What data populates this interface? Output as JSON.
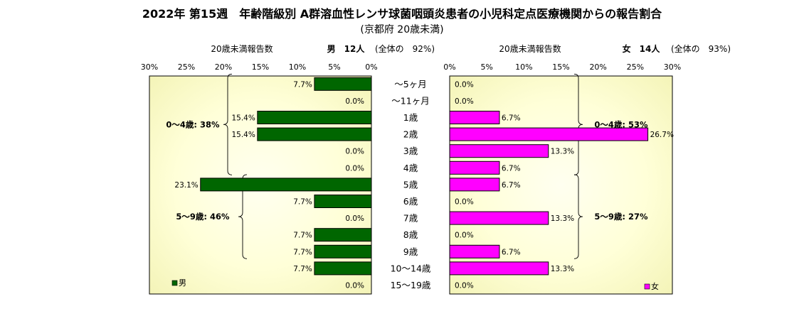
{
  "title": "2022年 第15週　年齢階級別 A群溶血性レンサ球菌咽頭炎患者の小児科定点医療機関からの報告割合",
  "subtitle": "(京都府 20歳未満)",
  "chart_data": {
    "type": "bar",
    "categories": [
      "～5ヶ月",
      "～11ヶ月",
      "1歳",
      "2歳",
      "3歳",
      "4歳",
      "5歳",
      "6歳",
      "7歳",
      "8歳",
      "9歳",
      "10～14歳",
      "15～19歳"
    ],
    "axis_ticks": [
      "30%",
      "25%",
      "20%",
      "15%",
      "10%",
      "5%",
      "0%"
    ],
    "axis_ticks_right": [
      "0%",
      "5%",
      "10%",
      "15%",
      "20%",
      "25%",
      "30%"
    ],
    "xlim": [
      0,
      30
    ],
    "series": [
      {
        "name": "男",
        "side": "left",
        "color": "#006600",
        "values": [
          7.7,
          0.0,
          15.4,
          15.4,
          0.0,
          0.0,
          23.1,
          7.7,
          0.0,
          7.7,
          7.7,
          7.7,
          0.0
        ],
        "value_labels": [
          "7.7%",
          "0.0%",
          "15.4%",
          "15.4%",
          "0.0%",
          "0.0%",
          "23.1%",
          "7.7%",
          "0.0%",
          "7.7%",
          "7.7%",
          "7.7%",
          "0.0%"
        ],
        "header_label": "20歳未満報告数",
        "header_count": "男　12人",
        "header_share": "(全体の　92%)",
        "legend": "男",
        "groups": [
          {
            "label": "0～4歳: 38%",
            "from": 0,
            "to": 5
          },
          {
            "label": "5～9歳: 46%",
            "from": 6,
            "to": 10
          }
        ]
      },
      {
        "name": "女",
        "side": "right",
        "color": "#ff00ff",
        "values": [
          0.0,
          0.0,
          6.7,
          26.7,
          13.3,
          6.7,
          6.7,
          0.0,
          13.3,
          0.0,
          6.7,
          13.3,
          0.0
        ],
        "value_labels": [
          "0.0%",
          "0.0%",
          "6.7%",
          "26.7%",
          "13.3%",
          "6.7%",
          "6.7%",
          "0.0%",
          "13.3%",
          "0.0%",
          "6.7%",
          "13.3%",
          "0.0%"
        ],
        "header_label": "20歳未満報告数",
        "header_count": "女　14人",
        "header_share": "(全体の　93%)",
        "legend": "女",
        "groups": [
          {
            "label": "0～4歳: 53%",
            "from": 0,
            "to": 5
          },
          {
            "label": "5～9歳: 27%",
            "from": 6,
            "to": 10
          }
        ]
      }
    ],
    "grid": false,
    "legend_position": "bottom-left / bottom-right"
  }
}
